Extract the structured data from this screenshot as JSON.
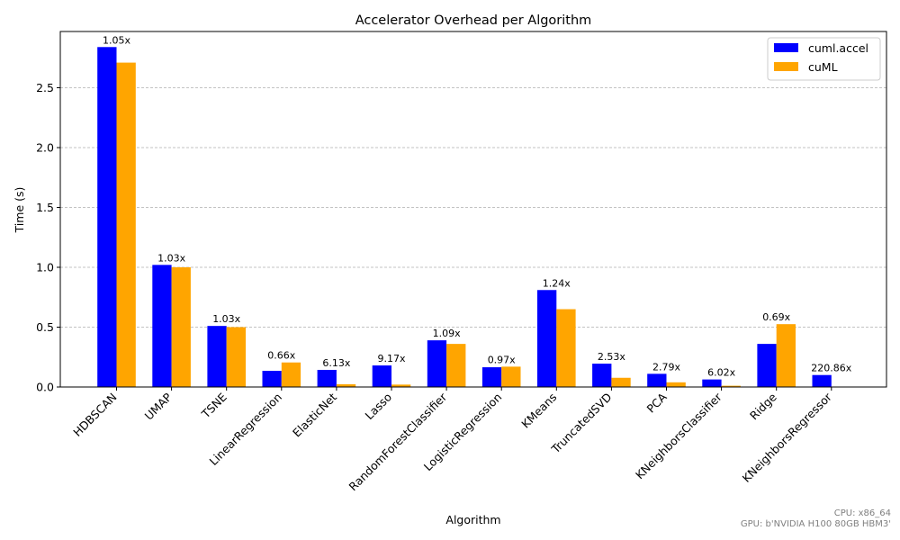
{
  "chart_data": {
    "type": "bar",
    "title": "Accelerator Overhead per Algorithm",
    "xlabel": "Algorithm",
    "ylabel": "Time (s)",
    "ylim": [
      0,
      2.97
    ],
    "yticks": [
      "0.0",
      "0.5",
      "1.0",
      "1.5",
      "2.0",
      "2.5"
    ],
    "grid": "y-dashed",
    "legend_position": "top-right",
    "categories": [
      "HDBSCAN",
      "UMAP",
      "TSNE",
      "LinearRegression",
      "ElasticNet",
      "Lasso",
      "RandomForestClassifier",
      "LogisticRegression",
      "KMeans",
      "TruncatedSVD",
      "PCA",
      "KNeighborsClassifier",
      "Ridge",
      "KNeighborsRegressor"
    ],
    "series": [
      {
        "name": "cuml.accel",
        "color": "#0000ff",
        "values": [
          2.84,
          1.02,
          0.51,
          0.135,
          0.143,
          0.18,
          0.39,
          0.165,
          0.81,
          0.195,
          0.11,
          0.063,
          0.36,
          0.1
        ]
      },
      {
        "name": "cuML",
        "color": "#ffa500",
        "values": [
          2.71,
          1.0,
          0.5,
          0.205,
          0.023,
          0.02,
          0.36,
          0.17,
          0.65,
          0.077,
          0.039,
          0.0105,
          0.525,
          0.0005
        ]
      }
    ],
    "data_labels": [
      "1.05x",
      "1.03x",
      "1.03x",
      "0.66x",
      "6.13x",
      "9.17x",
      "1.09x",
      "0.97x",
      "1.24x",
      "2.53x",
      "2.79x",
      "6.02x",
      "0.69x",
      "220.86x"
    ]
  },
  "footer": {
    "cpu": "CPU: x86_64",
    "gpu": "GPU: b'NVIDIA H100 80GB HBM3'"
  }
}
